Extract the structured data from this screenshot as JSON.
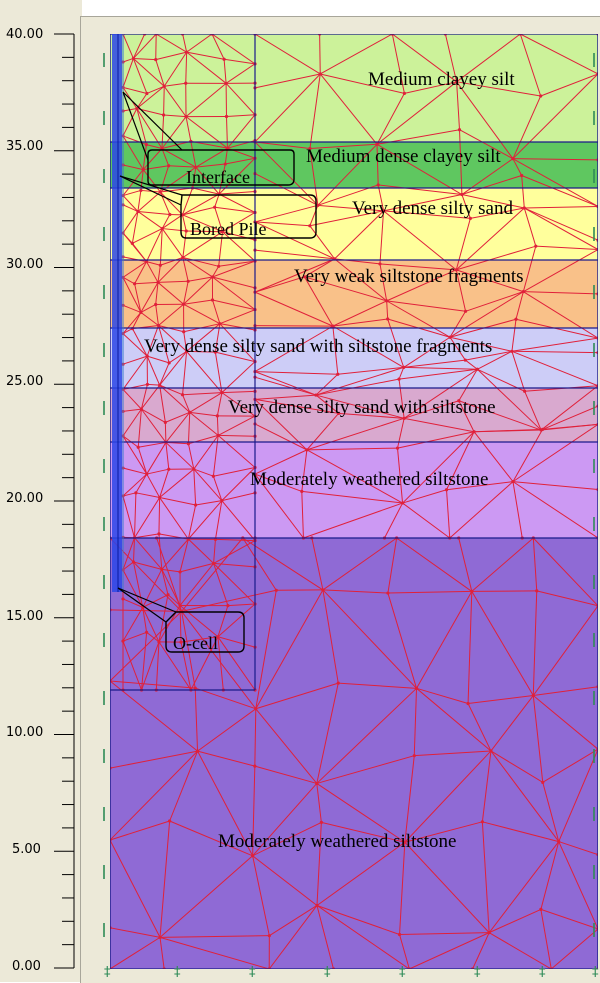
{
  "axis": {
    "ticks": [
      "40.00",
      "35.00",
      "30.00",
      "25.00",
      "20.00",
      "15.00",
      "10.00",
      "5.00",
      "0.00"
    ]
  },
  "layers": [
    {
      "label": "Medium clayey silt",
      "color": "#ccf29a"
    },
    {
      "label": "Medium dense clayey silt",
      "color": "#5fc760"
    },
    {
      "label": "Very dense silty sand",
      "color": "#ffff9c"
    },
    {
      "label": "Very weak siltstone fragments",
      "color": "#f9c189"
    },
    {
      "label": "Very dense silty sand with siltstone fragments",
      "color": "#cdcdf7"
    },
    {
      "label": "Very dense silty sand with siltstone",
      "color": "#d9a9cf"
    },
    {
      "label": "Moderately weathered siltstone",
      "color": "#cc99f3"
    },
    {
      "label": "Moderately weathered siltstone",
      "color": "#8f6ad5"
    }
  ],
  "callouts": {
    "interface": "Interface",
    "bored_pile": "Bored Pile",
    "o_cell": "O-cell"
  },
  "colors": {
    "mesh": "#e0203a",
    "boundary": "#1a1a8a",
    "pile": "#1030e0",
    "support": "#2e8b57"
  }
}
